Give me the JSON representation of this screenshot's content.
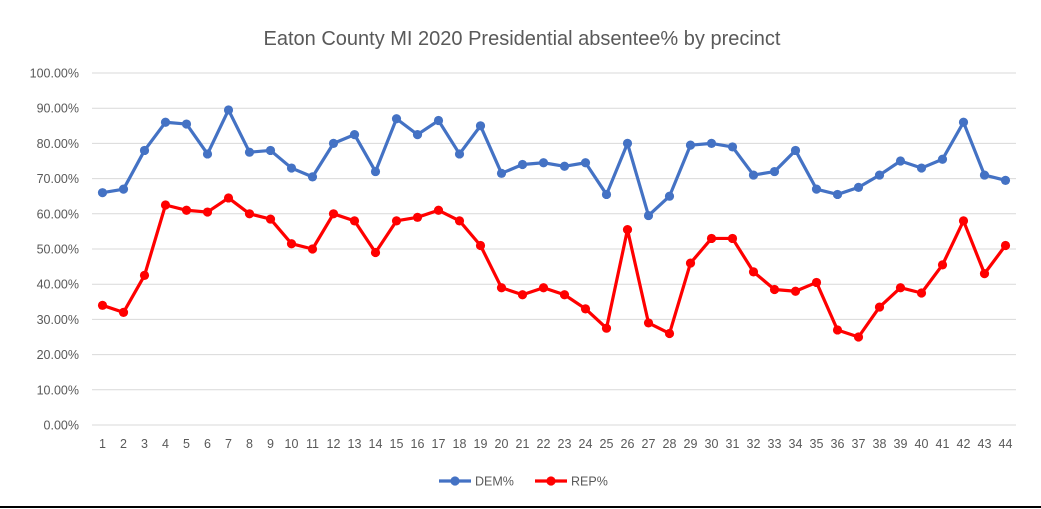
{
  "chart_data": {
    "type": "line",
    "title": "Eaton County MI 2020 Presidential absentee% by precinct",
    "xlabel": "",
    "ylabel": "",
    "categories": [
      "1",
      "2",
      "3",
      "4",
      "5",
      "6",
      "7",
      "8",
      "9",
      "10",
      "11",
      "12",
      "13",
      "14",
      "15",
      "16",
      "17",
      "18",
      "19",
      "20",
      "21",
      "22",
      "23",
      "24",
      "25",
      "26",
      "27",
      "28",
      "29",
      "30",
      "31",
      "32",
      "33",
      "34",
      "35",
      "36",
      "37",
      "38",
      "39",
      "40",
      "41",
      "42",
      "43",
      "44"
    ],
    "ylim": [
      0,
      100
    ],
    "yticks": [
      "0.00%",
      "10.00%",
      "20.00%",
      "30.00%",
      "40.00%",
      "50.00%",
      "60.00%",
      "70.00%",
      "80.00%",
      "90.00%",
      "100.00%"
    ],
    "grid": true,
    "legend_position": "bottom",
    "series": [
      {
        "name": "DEM%",
        "color": "#4472c4",
        "values": [
          66,
          67,
          78,
          86,
          85.5,
          77,
          89.5,
          77.5,
          78,
          73,
          70.5,
          80,
          82.5,
          72,
          87,
          82.5,
          86.5,
          77,
          85,
          71.5,
          74,
          74.5,
          73.5,
          74.5,
          65.5,
          80,
          59.5,
          65,
          79.5,
          80,
          79,
          71,
          72,
          78,
          67,
          65.5,
          67.5,
          71,
          75,
          73,
          75.5,
          86,
          71,
          69.5
        ]
      },
      {
        "name": "REP%",
        "color": "#ff0000",
        "values": [
          34,
          32,
          42.5,
          62.5,
          61,
          60.5,
          64.5,
          60,
          58.5,
          51.5,
          50,
          60,
          58,
          49,
          58,
          59,
          61,
          58,
          51,
          39,
          37,
          39,
          37,
          33,
          27.5,
          55.5,
          29,
          26,
          46,
          53,
          53,
          43.5,
          38.5,
          38,
          40.5,
          27,
          25,
          33.5,
          39,
          37.5,
          45.5,
          58,
          43,
          51
        ]
      }
    ]
  }
}
